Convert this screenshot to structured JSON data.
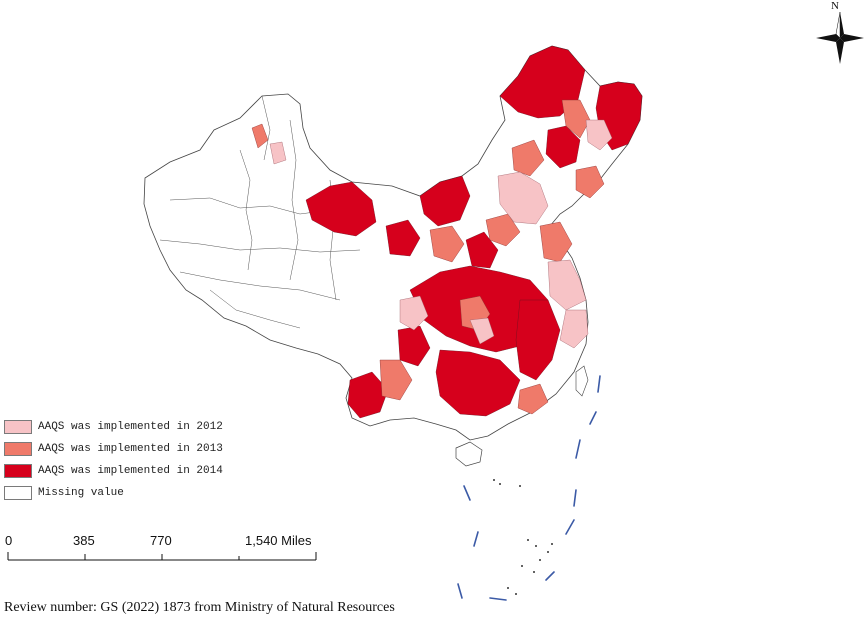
{
  "legend": {
    "items": [
      {
        "label": "AAQS was implemented in 2012",
        "color": "#f7c3c6"
      },
      {
        "label": "AAQS was implemented in 2013",
        "color": "#ef7a6a"
      },
      {
        "label": "AAQS was implemented in 2014",
        "color": "#d6001c"
      },
      {
        "label": "Missing value",
        "color": "#ffffff"
      }
    ]
  },
  "scale_bar": {
    "ticks": [
      "0",
      "385",
      "770",
      "1,540 Miles"
    ]
  },
  "north_arrow": {
    "label": "N"
  },
  "footer": {
    "review_text": "Review number: GS (2022) 1873  from Ministry of Natural Resources"
  },
  "colors": {
    "implemented_2012": "#f7c3c6",
    "implemented_2013": "#ef7a6a",
    "implemented_2014": "#d6001c",
    "missing": "#ffffff",
    "boundary": "#555555",
    "nine_dash_line": "#3b5aa6"
  }
}
